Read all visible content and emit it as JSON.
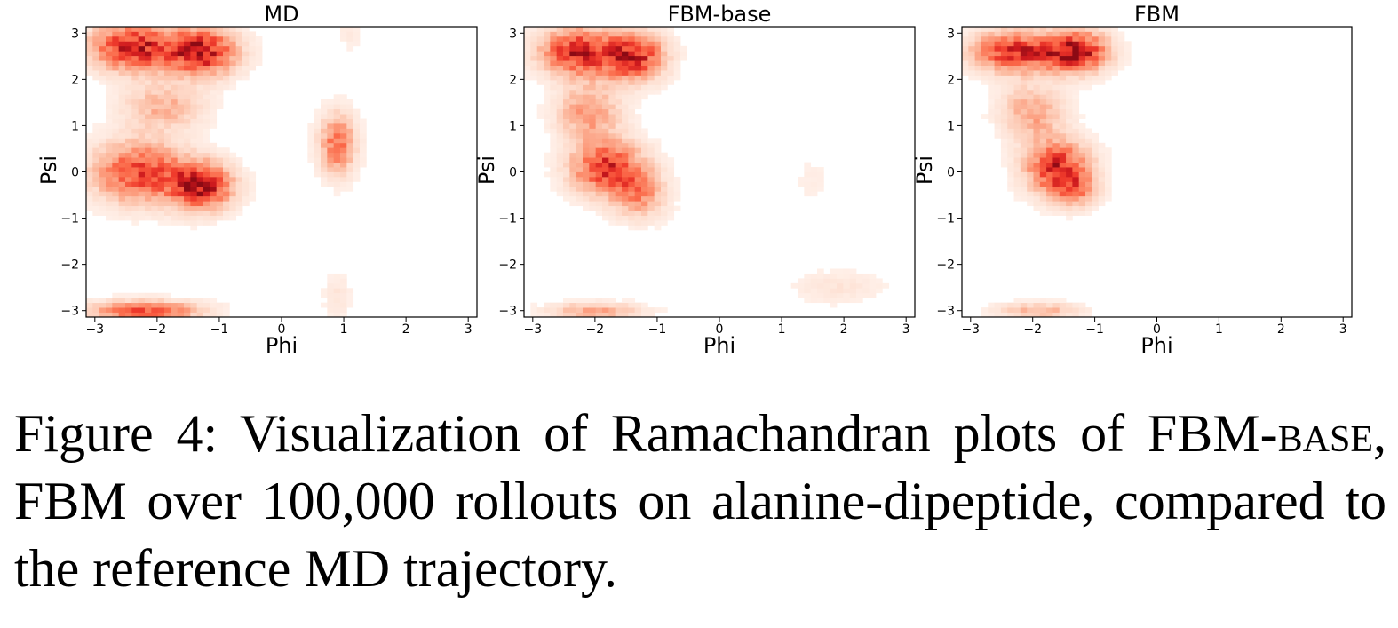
{
  "chart_data": [
    {
      "type": "heatmap",
      "title": "MD",
      "xlabel": "Phi",
      "ylabel": "Psi",
      "xlim": [
        -3.14,
        3.14
      ],
      "ylim": [
        -3.14,
        3.14
      ],
      "xticks": [
        "−3",
        "−2",
        "−1",
        "0",
        "1",
        "2",
        "3"
      ],
      "yticks": [
        "3",
        "2",
        "1",
        "0",
        "−1",
        "−2",
        "−3"
      ],
      "colormap": "Reds",
      "regions": [
        {
          "phi": -2.4,
          "psi": 2.7,
          "sphi": 0.45,
          "spsi": 0.35,
          "weight": 0.9
        },
        {
          "phi": -1.3,
          "psi": 2.6,
          "sphi": 0.4,
          "spsi": 0.35,
          "weight": 0.95
        },
        {
          "phi": -2.3,
          "psi": 0.0,
          "sphi": 0.5,
          "spsi": 0.45,
          "weight": 0.75
        },
        {
          "phi": -1.3,
          "psi": -0.3,
          "sphi": 0.35,
          "spsi": 0.35,
          "weight": 0.95
        },
        {
          "phi": -1.9,
          "psi": 1.4,
          "sphi": 0.45,
          "spsi": 0.35,
          "weight": 0.35
        },
        {
          "phi": -2.2,
          "psi": -3.0,
          "sphi": 0.6,
          "spsi": 0.15,
          "weight": 0.7
        },
        {
          "phi": 0.9,
          "psi": 0.6,
          "sphi": 0.2,
          "spsi": 0.45,
          "weight": 0.6
        },
        {
          "phi": 0.9,
          "psi": -2.7,
          "sphi": 0.15,
          "spsi": 0.35,
          "weight": 0.12
        },
        {
          "phi": 1.1,
          "psi": 3.0,
          "sphi": 0.15,
          "spsi": 0.3,
          "weight": 0.08
        }
      ]
    },
    {
      "type": "heatmap",
      "title": "FBM-base",
      "xlabel": "Phi",
      "ylabel": "Psi",
      "xlim": [
        -3.14,
        3.14
      ],
      "ylim": [
        -3.14,
        3.14
      ],
      "xticks": [
        "−3",
        "−2",
        "−1",
        "0",
        "1",
        "2",
        "3"
      ],
      "yticks": [
        "3",
        "2",
        "1",
        "0",
        "−1",
        "−2",
        "−3"
      ],
      "colormap": "Reds",
      "regions": [
        {
          "phi": -2.3,
          "psi": 2.6,
          "sphi": 0.4,
          "spsi": 0.35,
          "weight": 0.85
        },
        {
          "phi": -1.4,
          "psi": 2.5,
          "sphi": 0.35,
          "spsi": 0.35,
          "weight": 0.9
        },
        {
          "phi": -2.1,
          "psi": 1.3,
          "sphi": 0.35,
          "spsi": 0.4,
          "weight": 0.45
        },
        {
          "phi": -1.8,
          "psi": 0.1,
          "sphi": 0.4,
          "spsi": 0.4,
          "weight": 0.8
        },
        {
          "phi": -1.3,
          "psi": -0.5,
          "sphi": 0.3,
          "spsi": 0.35,
          "weight": 0.45
        },
        {
          "phi": -2.0,
          "psi": -3.0,
          "sphi": 0.5,
          "spsi": 0.12,
          "weight": 0.4
        },
        {
          "phi": 1.9,
          "psi": -2.5,
          "sphi": 0.5,
          "spsi": 0.25,
          "weight": 0.12
        },
        {
          "phi": 1.5,
          "psi": -0.2,
          "sphi": 0.2,
          "spsi": 0.4,
          "weight": 0.06
        }
      ]
    },
    {
      "type": "heatmap",
      "title": "FBM",
      "xlabel": "Phi",
      "ylabel": "Psi",
      "xlim": [
        -3.14,
        3.14
      ],
      "ylim": [
        -3.14,
        3.14
      ],
      "xticks": [
        "−3",
        "−2",
        "−1",
        "0",
        "1",
        "2",
        "3"
      ],
      "yticks": [
        "3",
        "2",
        "1",
        "0",
        "−1",
        "−2",
        "−3"
      ],
      "colormap": "Reds",
      "regions": [
        {
          "phi": -2.3,
          "psi": 2.6,
          "sphi": 0.45,
          "spsi": 0.3,
          "weight": 0.85
        },
        {
          "phi": -1.3,
          "psi": 2.6,
          "sphi": 0.35,
          "spsi": 0.3,
          "weight": 1.0
        },
        {
          "phi": -2.0,
          "psi": 1.3,
          "sphi": 0.35,
          "spsi": 0.4,
          "weight": 0.4
        },
        {
          "phi": -1.6,
          "psi": 0.1,
          "sphi": 0.35,
          "spsi": 0.4,
          "weight": 0.85
        },
        {
          "phi": -1.3,
          "psi": -0.4,
          "sphi": 0.25,
          "spsi": 0.25,
          "weight": 0.4
        },
        {
          "phi": -1.9,
          "psi": -3.0,
          "sphi": 0.45,
          "spsi": 0.12,
          "weight": 0.35
        }
      ]
    }
  ],
  "caption": {
    "part1": "Figure 4: Visualization of Ramachandran plots of FBM-",
    "base_smallcaps": "base",
    "part2": ", FBM over 100,000 rollouts on alanine-dipeptide, compared to the reference MD trajectory."
  }
}
